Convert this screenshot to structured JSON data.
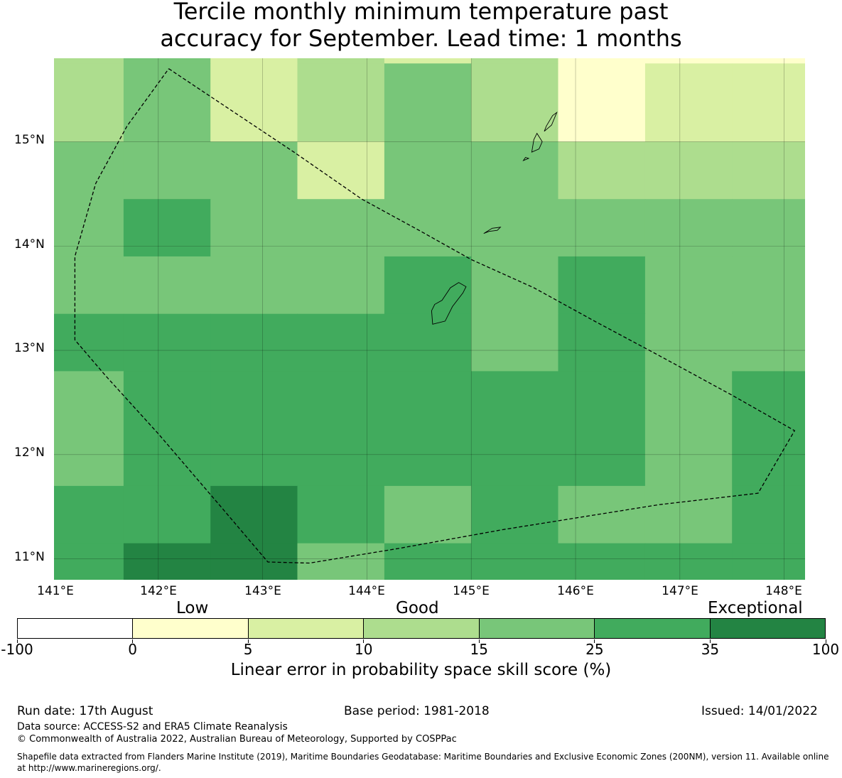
{
  "title": {
    "line1": "Tercile monthly minimum temperature past",
    "line2": "accuracy for September. Lead time: 1 months"
  },
  "map": {
    "lat_labels": [
      "15°N",
      "14°N",
      "13°N",
      "12°N",
      "11°N"
    ],
    "lon_labels": [
      "141°E",
      "142°E",
      "143°E",
      "144°E",
      "145°E",
      "146°E",
      "147°E",
      "148°E"
    ],
    "lat_range": [
      10.8,
      15.8
    ],
    "lon_range": [
      141.0,
      148.2
    ],
    "lat_edges": [
      15.8,
      15.75,
      15.0,
      14.45,
      13.9,
      13.35,
      12.8,
      11.7,
      11.15,
      10.8
    ],
    "lon_edges": [
      141.0,
      141.667,
      142.5,
      143.333,
      144.167,
      145.0,
      145.833,
      146.667,
      147.5,
      148.2
    ],
    "grid_colors_hex": [
      "#ffffcc",
      "#d9f0a3",
      "#addd8e",
      "#78c679",
      "#41ab5d",
      "#238443"
    ],
    "cells": [
      [
        2,
        3,
        1,
        2,
        1,
        2,
        0,
        0,
        0
      ],
      [
        2,
        3,
        1,
        2,
        3,
        2,
        0,
        1,
        1
      ],
      [
        3,
        3,
        3,
        1,
        3,
        3,
        2,
        2,
        2
      ],
      [
        3,
        4,
        3,
        3,
        3,
        3,
        3,
        3,
        3
      ],
      [
        3,
        3,
        3,
        3,
        4,
        3,
        4,
        3,
        3
      ],
      [
        4,
        4,
        4,
        4,
        4,
        3,
        4,
        3,
        3
      ],
      [
        3,
        4,
        4,
        4,
        4,
        4,
        4,
        3,
        4
      ],
      [
        4,
        4,
        5,
        4,
        3,
        4,
        3,
        3,
        4
      ],
      [
        4,
        5,
        5,
        3,
        4,
        4,
        4,
        4,
        4
      ]
    ],
    "eez_boundary": [
      [
        142.1,
        15.7
      ],
      [
        142.7,
        15.3
      ],
      [
        143.3,
        14.9
      ],
      [
        143.95,
        14.45
      ],
      [
        144.5,
        14.15
      ],
      [
        145.0,
        13.87
      ],
      [
        145.6,
        13.6
      ],
      [
        146.2,
        13.27
      ],
      [
        146.8,
        12.95
      ],
      [
        147.5,
        12.57
      ],
      [
        148.1,
        12.23
      ],
      [
        147.75,
        11.63
      ],
      [
        146.8,
        11.52
      ],
      [
        145.3,
        11.28
      ],
      [
        144.3,
        11.1
      ],
      [
        143.45,
        10.96
      ],
      [
        143.05,
        10.97
      ],
      [
        142.6,
        11.5
      ],
      [
        142.0,
        12.2
      ],
      [
        141.5,
        12.75
      ],
      [
        141.2,
        13.1
      ],
      [
        141.2,
        13.9
      ],
      [
        141.4,
        14.6
      ],
      [
        141.7,
        15.15
      ],
      [
        142.1,
        15.7
      ]
    ],
    "islands": [
      [
        [
          144.63,
          13.25
        ],
        [
          144.75,
          13.28
        ],
        [
          144.82,
          13.42
        ],
        [
          144.92,
          13.55
        ],
        [
          144.95,
          13.61
        ],
        [
          144.88,
          13.65
        ],
        [
          144.8,
          13.6
        ],
        [
          144.72,
          13.48
        ],
        [
          144.65,
          13.44
        ],
        [
          144.62,
          13.38
        ]
      ],
      [
        [
          145.12,
          14.12
        ],
        [
          145.2,
          14.17
        ],
        [
          145.28,
          14.18
        ],
        [
          145.25,
          14.15
        ],
        [
          145.17,
          14.14
        ]
      ],
      [
        [
          145.58,
          14.9
        ],
        [
          145.65,
          14.93
        ],
        [
          145.68,
          15.0
        ],
        [
          145.63,
          15.08
        ],
        [
          145.6,
          15.02
        ]
      ],
      [
        [
          145.7,
          15.1
        ],
        [
          145.77,
          15.16
        ],
        [
          145.82,
          15.28
        ],
        [
          145.78,
          15.25
        ],
        [
          145.72,
          15.15
        ]
      ],
      [
        [
          145.5,
          14.82
        ],
        [
          145.55,
          14.84
        ],
        [
          145.52,
          14.85
        ]
      ]
    ]
  },
  "colorbar": {
    "categories": {
      "low": "Low",
      "good": "Good",
      "exceptional": "Exceptional"
    },
    "ticks": [
      "-100",
      "0",
      "5",
      "10",
      "15",
      "25",
      "35",
      "100"
    ],
    "colors": [
      "#ffffff",
      "#ffffcc",
      "#d9f0a3",
      "#addd8e",
      "#78c679",
      "#41ab5d",
      "#238443"
    ],
    "label": "Linear error in probability space skill score (%)"
  },
  "footer": {
    "run_date": "Run date: 17th August",
    "base_period": "Base period: 1981-2018",
    "issued": "Issued: 14/01/2022",
    "data_source": "Data source: ACCESS-S2 and ERA5 Climate Reanalysis",
    "copyright": "© Commonwealth of Australia 2022, Australian Bureau of Meteorology, Supported by COSPPac",
    "shapefile": "Shapefile data extracted from Flanders Marine Institute (2019), Maritime Boundaries Geodatabase: Maritime Boundaries and Exclusive Economic Zones (200NM), version 11. Available online at http://www.marineregions.org/."
  }
}
